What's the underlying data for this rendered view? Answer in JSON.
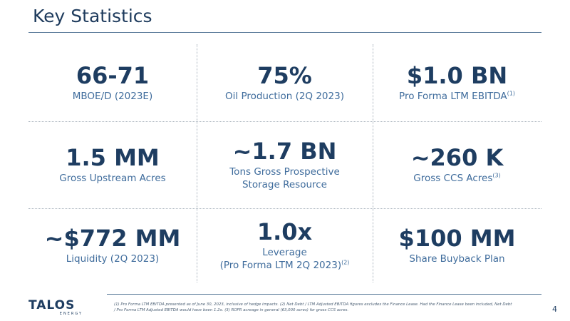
{
  "header": {
    "title": "Key Statistics"
  },
  "stats": [
    {
      "value": "66-71",
      "label": "MBOE/D (2023E)",
      "note": ""
    },
    {
      "value": "75%",
      "label": "Oil Production (2Q 2023)",
      "note": ""
    },
    {
      "value": "$1.0 BN",
      "label": "Pro Forma LTM EBITDA",
      "note": "(1)"
    },
    {
      "value": "1.5 MM",
      "label": "Gross Upstream Acres",
      "note": ""
    },
    {
      "value": "~1.7 BN",
      "label": "Tons Gross Prospective",
      "label2": "Storage Resource",
      "note": ""
    },
    {
      "value": "~260 K",
      "label": "Gross CCS Acres",
      "note": "(3)"
    },
    {
      "value": "~$772 MM",
      "label": "Liquidity (2Q 2023)",
      "note": ""
    },
    {
      "value": "1.0x",
      "label": "Leverage",
      "label2": "(Pro Forma LTM 2Q 2023)",
      "note": "(2)"
    },
    {
      "value": "$100 MM",
      "label": "Share Buyback Plan",
      "note": ""
    }
  ],
  "footer": {
    "logo_text": "TALOS",
    "logo_sub": "ENERGY",
    "footnote": "(1) Pro Forma LTM EBITDA presented as of June 30, 2023, inclusive of hedge impacts. (2) Net Debt / LTM Adjusted EBITDA figures excludes the Finance Lease. Had the Finance Lease been included, Net Debt / Pro Forma LTM Adjusted EBITDA would have been 1.2x. (3) ROFR acreage in general (63,000 acres) for gross CCS acres.",
    "page_number": "4"
  },
  "colors": {
    "navy": "#1e3d61",
    "label_blue": "#3f6c9c",
    "divider": "#a9b3bd"
  }
}
